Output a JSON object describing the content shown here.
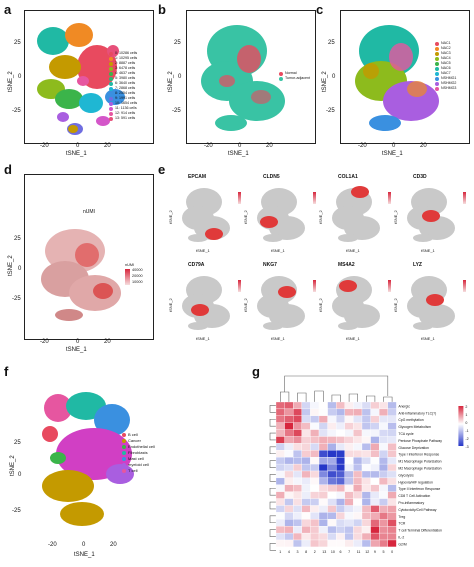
{
  "panel_letters": [
    "a",
    "b",
    "c",
    "d",
    "e",
    "f",
    "g"
  ],
  "axes": {
    "x_label": "tSNE_1",
    "y_label": "tSNE_2",
    "xticks": [
      "-20",
      "0",
      "20"
    ],
    "yticks": [
      "25",
      "0",
      "-25"
    ]
  },
  "panel_a": {
    "legend": [
      "0: 10286 cells",
      "1: 10295 cells",
      "2: 8887 cells",
      "3: 6478 cells",
      "4: 4637 cells",
      "5: 3980 cells",
      "6: 3640 cells",
      "7: 2868 cells",
      "8: 2554 cells",
      "9: 1991 cells",
      "10: 1654 cells",
      "11: 1136 cells",
      "12: 914 cells",
      "13: 591 cells"
    ],
    "colors": [
      "#e84a5f",
      "#f08a24",
      "#c49a00",
      "#8dbb1d",
      "#3bb44a",
      "#2bb673",
      "#20b9a4",
      "#1fb7d3",
      "#3a90e0",
      "#6f6de0",
      "#a95ee0",
      "#d456c9",
      "#e656a0",
      "#e7507a"
    ]
  },
  "panel_b": {
    "legend": [
      "Normal",
      "Tumor-adjacent"
    ],
    "colors": [
      "#e84a5f",
      "#39c3a4"
    ]
  },
  "panel_c": {
    "legend": [
      "NAC1",
      "NAC2",
      "NAC3",
      "NAC4",
      "NAC5",
      "NAC6",
      "NAC7",
      "NSHMG1",
      "NSHMG2",
      "NSHMG3"
    ],
    "colors": [
      "#e84a5f",
      "#f08a24",
      "#c49a00",
      "#8dbb1d",
      "#3bb44a",
      "#20b9a4",
      "#1fb7d3",
      "#3a90e0",
      "#a95ee0",
      "#e656a0"
    ]
  },
  "panel_d": {
    "title": "nUMI",
    "legend_title": "nUMI",
    "legend_ticks": [
      "40000",
      "20000",
      "10000"
    ]
  },
  "panel_e": {
    "genes": [
      "EPCAM",
      "CLDN5",
      "COL1A1",
      "CD3D",
      "CD79A",
      "NKG7",
      "MS4A2",
      "LYZ"
    ]
  },
  "panel_f": {
    "legend": [
      "B cell",
      "Cancer",
      "Endothelial cell",
      "Fibroblasts",
      "Mast cell",
      "myeloid cell",
      "T cell"
    ],
    "colors": [
      "#e84a5f",
      "#c49a00",
      "#3bb44a",
      "#20b9a4",
      "#3a90e0",
      "#a95ee0",
      "#e656a0"
    ]
  },
  "panel_g": {
    "rows": [
      "Anergic",
      "Anti-inflammatory TLC(?)",
      "CpG methylation",
      "Glycogen Metabolism",
      "TCA cycle",
      "Pentose Phosphate Pathway",
      "Glucose Deprivation",
      "Type I Interferon Response",
      "M1 Macrophage Polarization",
      "M2 Macrophage Polarization",
      "Glycolysis",
      "Hypoxia/HIF regulation",
      "Type II Interferon Response",
      "CD8 T Cell Activation",
      "Pro-inflammatory",
      "Cytotoxicity/Cell Pathway",
      "Treg",
      "TCR",
      "T cell Terminal Differentiation",
      "IL-2",
      "G2/M"
    ],
    "cols": [
      "1",
      "4",
      "3",
      "8",
      "2",
      "13",
      "10",
      "6",
      "7",
      "11",
      "12",
      "9",
      "5",
      "0"
    ],
    "colorbar": [
      "2",
      "1",
      "0",
      "-1",
      "-2",
      "-3"
    ],
    "low_color": "#2637c8",
    "high_color": "#d7263d"
  },
  "watermark": "a"
}
